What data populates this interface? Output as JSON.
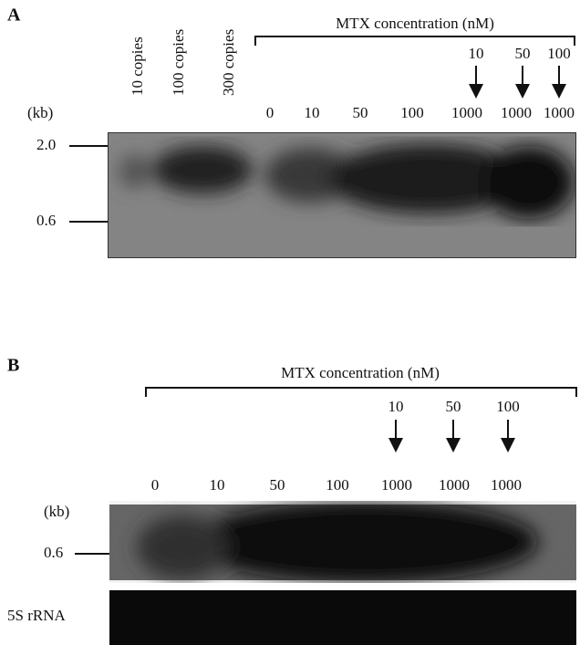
{
  "panels": [
    {
      "label": "A",
      "kb_unit": "(kb)",
      "sample_labels": [
        "10 copies",
        "100 copies",
        "300 copies"
      ],
      "header": "MTX concentration (nM)",
      "arrow_labels": [
        "10",
        "50",
        "100"
      ],
      "lane_labels": [
        "0",
        "10",
        "50",
        "100",
        "1000",
        "1000",
        "1000"
      ],
      "markers": [
        "2.0",
        "0.6"
      ]
    },
    {
      "label": "B",
      "kb_unit": "(kb)",
      "header": "MTX concentration (nM)",
      "arrow_labels": [
        "10",
        "50",
        "100"
      ],
      "lane_labels": [
        "0",
        "10",
        "50",
        "100",
        "1000",
        "1000",
        "1000"
      ],
      "markers": [
        "0.6"
      ],
      "loading_control": "5S rRNA"
    }
  ]
}
